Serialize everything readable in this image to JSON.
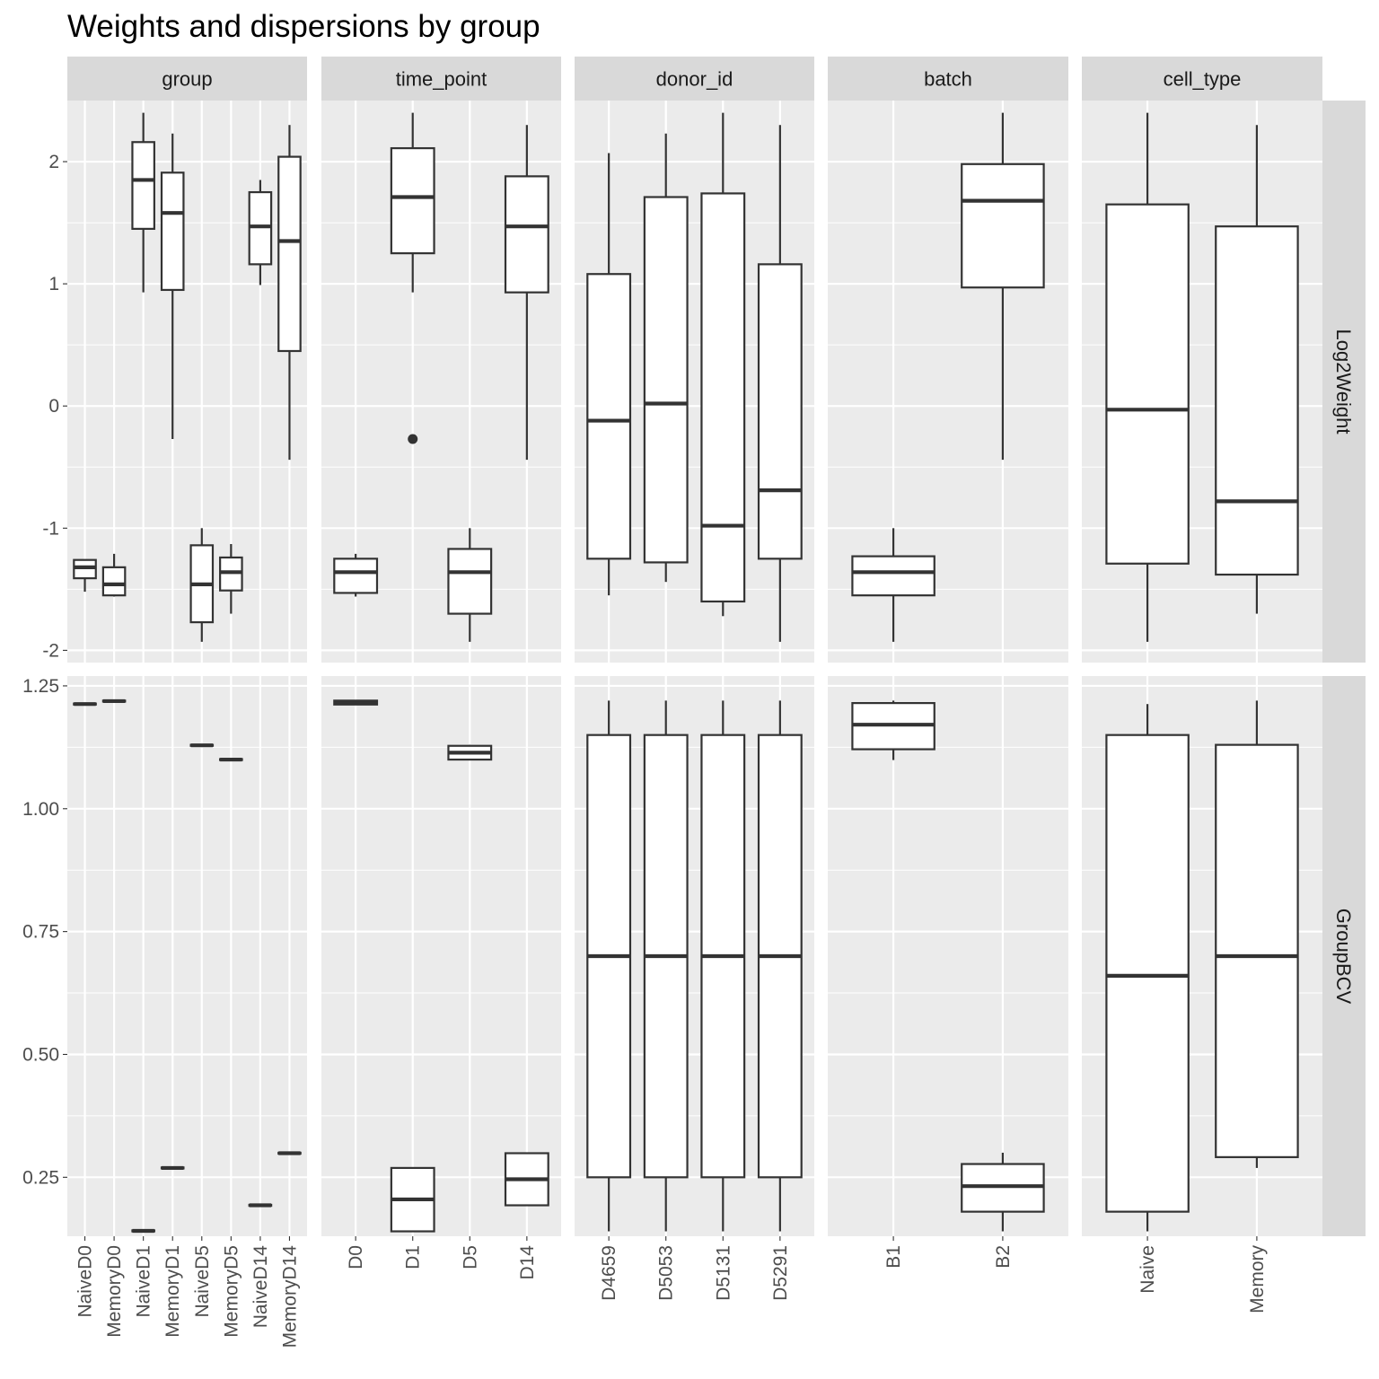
{
  "chart_data": {
    "type": "boxplot",
    "title": "Weights and dispersions by group",
    "columns": [
      {
        "label": "group",
        "categories": [
          "NaiveD0",
          "MemoryD0",
          "NaiveD1",
          "MemoryD1",
          "NaiveD5",
          "MemoryD5",
          "NaiveD14",
          "MemoryD14"
        ]
      },
      {
        "label": "time_point",
        "categories": [
          "D0",
          "D1",
          "D5",
          "D14"
        ]
      },
      {
        "label": "donor_id",
        "categories": [
          "D4659",
          "D5053",
          "D5131",
          "D5291"
        ]
      },
      {
        "label": "batch",
        "categories": [
          "B1",
          "B2"
        ]
      },
      {
        "label": "cell_type",
        "categories": [
          "Naive",
          "Memory"
        ]
      }
    ],
    "rows": [
      {
        "label": "Log2Weight",
        "ylim": [
          -2.1,
          2.5
        ],
        "yticks": [
          -2,
          -1,
          0,
          1,
          2
        ],
        "ytick_labels": [
          "-2",
          "-1",
          "0",
          "1",
          "2"
        ],
        "boxes": [
          [
            {
              "min": -1.52,
              "q1": -1.41,
              "median": -1.32,
              "q3": -1.26,
              "max": -1.26,
              "outliers": []
            },
            {
              "min": -1.56,
              "q1": -1.55,
              "median": -1.46,
              "q3": -1.32,
              "max": -1.21,
              "outliers": []
            },
            {
              "min": 0.93,
              "q1": 1.45,
              "median": 1.85,
              "q3": 2.16,
              "max": 2.4,
              "outliers": []
            },
            {
              "min": -0.27,
              "q1": 0.95,
              "median": 1.58,
              "q3": 1.91,
              "max": 2.23,
              "outliers": []
            },
            {
              "min": -1.93,
              "q1": -1.77,
              "median": -1.46,
              "q3": -1.14,
              "max": -1.0,
              "outliers": []
            },
            {
              "min": -1.7,
              "q1": -1.51,
              "median": -1.36,
              "q3": -1.24,
              "max": -1.13,
              "outliers": []
            },
            {
              "min": 0.99,
              "q1": 1.16,
              "median": 1.47,
              "q3": 1.75,
              "max": 1.85,
              "outliers": []
            },
            {
              "min": -0.44,
              "q1": 0.45,
              "median": 1.35,
              "q3": 2.04,
              "max": 2.3,
              "outliers": []
            }
          ],
          [
            {
              "min": -1.56,
              "q1": -1.53,
              "median": -1.36,
              "q3": -1.25,
              "max": -1.21,
              "outliers": []
            },
            {
              "min": 0.93,
              "q1": 1.25,
              "median": 1.71,
              "q3": 2.11,
              "max": 2.4,
              "outliers": [
                -0.27
              ]
            },
            {
              "min": -1.93,
              "q1": -1.7,
              "median": -1.36,
              "q3": -1.17,
              "max": -1.0,
              "outliers": []
            },
            {
              "min": -0.44,
              "q1": 0.93,
              "median": 1.47,
              "q3": 1.88,
              "max": 2.3,
              "outliers": []
            }
          ],
          [
            {
              "min": -1.55,
              "q1": -1.25,
              "median": -0.12,
              "q3": 1.08,
              "max": 2.07,
              "outliers": []
            },
            {
              "min": -1.44,
              "q1": -1.28,
              "median": 0.02,
              "q3": 1.71,
              "max": 2.23,
              "outliers": []
            },
            {
              "min": -1.72,
              "q1": -1.6,
              "median": -0.98,
              "q3": 1.74,
              "max": 2.4,
              "outliers": []
            },
            {
              "min": -1.93,
              "q1": -1.25,
              "median": -0.69,
              "q3": 1.16,
              "max": 2.3,
              "outliers": []
            }
          ],
          [
            {
              "min": -1.93,
              "q1": -1.55,
              "median": -1.36,
              "q3": -1.23,
              "max": -1.0,
              "outliers": []
            },
            {
              "min": -0.44,
              "q1": 0.97,
              "median": 1.68,
              "q3": 1.98,
              "max": 2.4,
              "outliers": []
            }
          ],
          [
            {
              "min": -1.93,
              "q1": -1.29,
              "median": -0.03,
              "q3": 1.65,
              "max": 2.4,
              "outliers": []
            },
            {
              "min": -1.7,
              "q1": -1.38,
              "median": -0.78,
              "q3": 1.47,
              "max": 2.3,
              "outliers": []
            }
          ]
        ]
      },
      {
        "label": "GroupBCV",
        "ylim": [
          0.13,
          1.27
        ],
        "yticks": [
          0.25,
          0.5,
          0.75,
          1.0,
          1.25
        ],
        "ytick_labels": [
          "0.25",
          "0.50",
          "0.75",
          "1.00",
          "1.25"
        ],
        "boxes": [
          [
            {
              "min": 1.212,
              "q1": 1.212,
              "median": 1.213,
              "q3": 1.214,
              "max": 1.214,
              "outliers": []
            },
            {
              "min": 1.218,
              "q1": 1.218,
              "median": 1.219,
              "q3": 1.22,
              "max": 1.22,
              "outliers": []
            },
            {
              "min": 0.14,
              "q1": 0.14,
              "median": 0.141,
              "q3": 0.142,
              "max": 0.142,
              "outliers": []
            },
            {
              "min": 0.268,
              "q1": 0.268,
              "median": 0.269,
              "q3": 0.27,
              "max": 0.27,
              "outliers": []
            },
            {
              "min": 1.128,
              "q1": 1.128,
              "median": 1.129,
              "q3": 1.13,
              "max": 1.13,
              "outliers": []
            },
            {
              "min": 1.099,
              "q1": 1.099,
              "median": 1.1,
              "q3": 1.101,
              "max": 1.101,
              "outliers": []
            },
            {
              "min": 0.192,
              "q1": 0.192,
              "median": 0.193,
              "q3": 0.194,
              "max": 0.194,
              "outliers": []
            },
            {
              "min": 0.298,
              "q1": 0.298,
              "median": 0.299,
              "q3": 0.3,
              "max": 0.3,
              "outliers": []
            }
          ],
          [
            {
              "min": 1.212,
              "q1": 1.212,
              "median": 1.216,
              "q3": 1.22,
              "max": 1.22,
              "outliers": []
            },
            {
              "min": 0.14,
              "q1": 0.14,
              "median": 0.205,
              "q3": 0.269,
              "max": 0.27,
              "outliers": []
            },
            {
              "min": 1.099,
              "q1": 1.1,
              "median": 1.114,
              "q3": 1.128,
              "max": 1.13,
              "outliers": []
            },
            {
              "min": 0.192,
              "q1": 0.193,
              "median": 0.246,
              "q3": 0.299,
              "max": 0.3,
              "outliers": []
            }
          ],
          [
            {
              "min": 0.14,
              "q1": 0.25,
              "median": 0.7,
              "q3": 1.15,
              "max": 1.22,
              "outliers": []
            },
            {
              "min": 0.14,
              "q1": 0.25,
              "median": 0.7,
              "q3": 1.15,
              "max": 1.22,
              "outliers": []
            },
            {
              "min": 0.14,
              "q1": 0.25,
              "median": 0.7,
              "q3": 1.15,
              "max": 1.22,
              "outliers": []
            },
            {
              "min": 0.14,
              "q1": 0.25,
              "median": 0.7,
              "q3": 1.15,
              "max": 1.22,
              "outliers": []
            }
          ],
          [
            {
              "min": 1.099,
              "q1": 1.121,
              "median": 1.171,
              "q3": 1.215,
              "max": 1.22,
              "outliers": []
            },
            {
              "min": 0.14,
              "q1": 0.18,
              "median": 0.232,
              "q3": 0.277,
              "max": 0.3,
              "outliers": []
            }
          ],
          [
            {
              "min": 0.14,
              "q1": 0.18,
              "median": 0.66,
              "q3": 1.15,
              "max": 1.213,
              "outliers": []
            },
            {
              "min": 0.269,
              "q1": 0.291,
              "median": 0.7,
              "q3": 1.13,
              "max": 1.22,
              "outliers": []
            }
          ]
        ]
      }
    ]
  }
}
